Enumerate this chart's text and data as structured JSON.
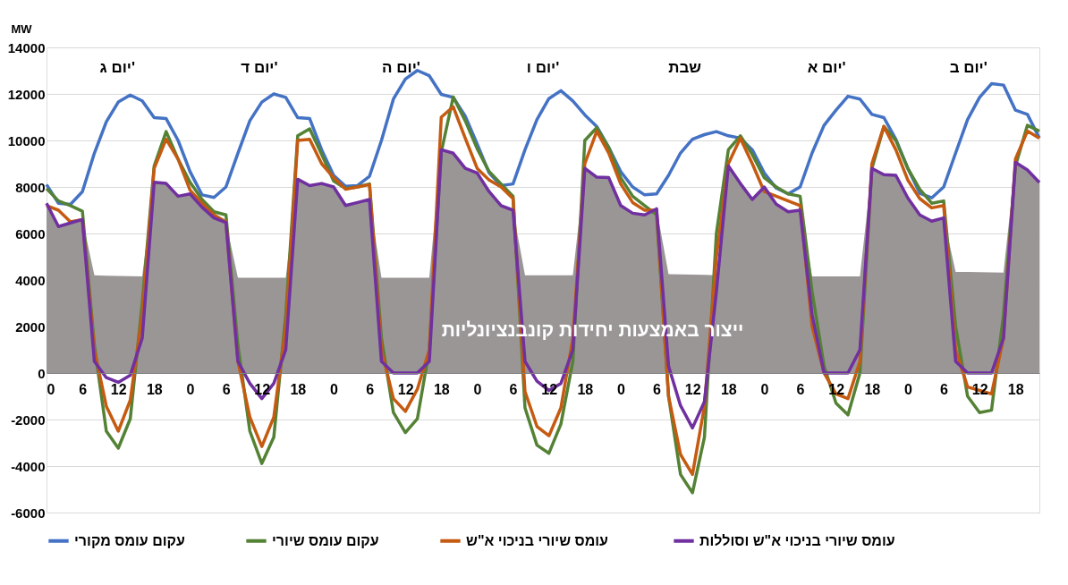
{
  "chart_data": {
    "type": "line",
    "ylabel": "MW",
    "grid": "y",
    "legend": "bottom",
    "marker": "none",
    "line_style": "solid",
    "ylim": [
      -6000,
      14000
    ],
    "yticks": [
      -6000,
      -4000,
      -2000,
      0,
      2000,
      4000,
      6000,
      8000,
      10000,
      12000,
      14000
    ],
    "categories": [
      "0",
      null,
      null,
      "6",
      null,
      null,
      "12",
      null,
      null,
      "18",
      null,
      null,
      "0",
      null,
      null,
      "6",
      null,
      null,
      "12",
      null,
      null,
      "18",
      null,
      null,
      "0",
      null,
      null,
      "6",
      null,
      null,
      "12",
      null,
      null,
      "18",
      null,
      null,
      "0",
      null,
      null,
      "6",
      null,
      null,
      "12",
      null,
      null,
      "18",
      null,
      null,
      "0",
      null,
      null,
      "6",
      null,
      null,
      "12",
      null,
      null,
      "18",
      null,
      null,
      "0",
      null,
      null,
      "6",
      null,
      null,
      "12",
      null,
      null,
      "18",
      null,
      null,
      "0",
      null,
      null,
      "6",
      null,
      null,
      "12",
      null,
      null,
      "18",
      null,
      null
    ],
    "annotations": [
      "יום ג'",
      "יום ד'",
      "יום ה'",
      "יום ו'",
      "שבת",
      "יום א'",
      "יום ב'"
    ],
    "series": [
      {
        "type": "area",
        "name": "ייצור באמצעות יחידות קונבנציונליות",
        "color": "#9a9696",
        "values": [
          7300,
          6300,
          6450,
          6600,
          4200,
          4180,
          4170,
          4160,
          4150,
          8200,
          8150,
          7600,
          7700,
          7130,
          6670,
          6470,
          4100,
          4100,
          4100,
          4100,
          4100,
          8330,
          8060,
          8150,
          8000,
          7200,
          7330,
          7460,
          4100,
          4100,
          4100,
          4100,
          4100,
          9600,
          9450,
          8800,
          8600,
          7800,
          7200,
          7000,
          4200,
          4200,
          4200,
          4200,
          4200,
          8800,
          8420,
          8400,
          7200,
          6870,
          6800,
          7060,
          4250,
          4240,
          4230,
          4220,
          4200,
          8900,
          8150,
          7460,
          8000,
          7260,
          6930,
          7000,
          4150,
          4150,
          4150,
          4150,
          4150,
          8800,
          8530,
          8500,
          7530,
          6800,
          6530,
          6670,
          4350,
          4350,
          4340,
          4330,
          4320,
          9060,
          8730,
          8190
        ]
      },
      {
        "name": "עקום עומס מקורי",
        "color": "#4472c4",
        "values": [
          8100,
          7300,
          7250,
          7800,
          9450,
          10800,
          11650,
          11950,
          11700,
          10980,
          10940,
          10000,
          8660,
          7660,
          7550,
          8000,
          9450,
          10850,
          11650,
          12000,
          11850,
          10980,
          10940,
          9600,
          8500,
          8030,
          8060,
          8460,
          10000,
          11780,
          12640,
          13010,
          12780,
          11980,
          11850,
          11050,
          9850,
          8600,
          8060,
          8130,
          9600,
          10900,
          11800,
          12140,
          11700,
          11100,
          10600,
          9700,
          8660,
          8000,
          7660,
          7700,
          8500,
          9460,
          10050,
          10250,
          10380,
          10200,
          10100,
          9600,
          8600,
          7950,
          7700,
          8000,
          9460,
          10650,
          11300,
          11900,
          11780,
          11120,
          10980,
          10050,
          8800,
          7730,
          7530,
          8000,
          9460,
          10900,
          11850,
          12440,
          12380,
          11300,
          11120,
          10100
        ]
      },
      {
        "name": "עקום עומס שיורי",
        "color": "#548235",
        "values": [
          7930,
          7400,
          7200,
          6960,
          1200,
          -2500,
          -3230,
          -1970,
          3000,
          8900,
          10380,
          9190,
          8200,
          7460,
          6930,
          6800,
          1200,
          -2500,
          -3890,
          -2760,
          2500,
          10200,
          10500,
          9400,
          8260,
          7930,
          8000,
          8130,
          1500,
          -1700,
          -2560,
          -1970,
          1000,
          9500,
          11870,
          10850,
          9650,
          8660,
          8130,
          7600,
          -1500,
          -3100,
          -3450,
          -2200,
          500,
          10000,
          10550,
          9700,
          8400,
          7600,
          7200,
          6800,
          -1000,
          -4360,
          -5150,
          -2760,
          6000,
          9600,
          10200,
          9400,
          8400,
          8000,
          7700,
          7600,
          3500,
          300,
          -1300,
          -1800,
          0,
          8800,
          10600,
          10000,
          8800,
          7900,
          7300,
          7400,
          2000,
          -1000,
          -1700,
          -1600,
          2500,
          8900,
          10650,
          10400
        ]
      },
      {
        "name": "עומס שיורי בניכוי  א\"ש",
        "color": "#c55a11",
        "values": [
          7200,
          7000,
          6500,
          6600,
          1000,
          -1430,
          -2500,
          -1170,
          2500,
          8800,
          10050,
          9200,
          7860,
          7300,
          6800,
          6500,
          500,
          -1900,
          -3160,
          -1900,
          2000,
          10000,
          10050,
          9000,
          8400,
          7900,
          8000,
          8100,
          1000,
          -1100,
          -1650,
          -700,
          1000,
          11000,
          11450,
          10100,
          8800,
          8300,
          8000,
          7500,
          -800,
          -2300,
          -2700,
          -1500,
          1500,
          9000,
          10400,
          9460,
          8130,
          7330,
          7000,
          7000,
          -1000,
          -3500,
          -4360,
          -1430,
          5000,
          9000,
          10100,
          9000,
          7800,
          7600,
          7400,
          7200,
          2000,
          0,
          -900,
          -1100,
          500,
          9000,
          10600,
          9600,
          8300,
          7500,
          7100,
          7200,
          1000,
          -600,
          -750,
          -900,
          1500,
          9200,
          10400,
          10100
        ]
      },
      {
        "name": "עומס שיורי בניכוי  א\"ש וסוללות",
        "color": "#7030a0",
        "values": [
          7300,
          6300,
          6450,
          6600,
          500,
          -200,
          -400,
          -100,
          1500,
          8200,
          8150,
          7600,
          7700,
          7130,
          6670,
          6470,
          500,
          -450,
          -1100,
          -450,
          1000,
          8330,
          8060,
          8150,
          8000,
          7200,
          7330,
          7460,
          500,
          0,
          0,
          0,
          500,
          9600,
          9450,
          8800,
          8600,
          7800,
          7200,
          7000,
          500,
          -350,
          -750,
          -450,
          1000,
          8800,
          8420,
          8400,
          7200,
          6870,
          6800,
          7060,
          300,
          -1400,
          -2360,
          -1230,
          3500,
          8900,
          8150,
          7460,
          8000,
          7260,
          6930,
          7000,
          2500,
          0,
          0,
          0,
          1000,
          8800,
          8530,
          8500,
          7530,
          6800,
          6530,
          6670,
          500,
          0,
          0,
          0,
          1500,
          9060,
          8730,
          8190
        ]
      }
    ]
  }
}
